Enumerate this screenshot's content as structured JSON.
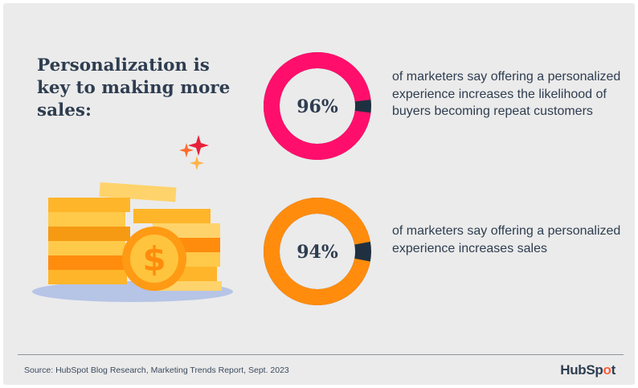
{
  "headline": "Personalization is key to making more sales:",
  "chart_data": [
    {
      "type": "pie",
      "label": "96%",
      "value": 96,
      "caption": "of marketers say offering a personalized experience increases the likelihood of buyers becoming repeat customers",
      "color": "#ff0f6b",
      "remainder_color": "#1f3140"
    },
    {
      "type": "pie",
      "label": "94%",
      "value": 94,
      "caption": "of marketers say offering a personalized experience increases sales",
      "color": "#ff8c0d",
      "remainder_color": "#1f3140"
    }
  ],
  "footer": {
    "source": "Source: HubSpot Blog Research, Marketing Trends Report, Sept. 2023",
    "brand_before": "HubSp",
    "brand_o": "o",
    "brand_after": "t"
  },
  "illustration": {
    "coin_symbol": "$",
    "icons": [
      "sparkle-icon",
      "coin-stack-icon",
      "dollar-coin-icon"
    ]
  }
}
